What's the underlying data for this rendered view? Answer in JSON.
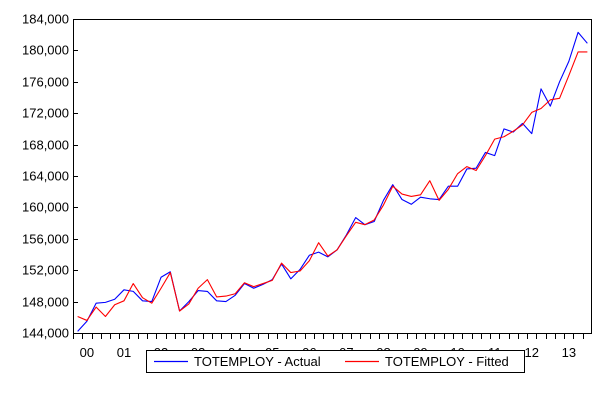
{
  "chart_data": {
    "type": "line",
    "title": "",
    "xlabel": "",
    "ylabel": "",
    "ylim": [
      144000,
      184000
    ],
    "yticks": [
      144000,
      148000,
      152000,
      156000,
      160000,
      164000,
      168000,
      172000,
      176000,
      180000,
      184000
    ],
    "ytick_labels": [
      "144,000",
      "148,000",
      "152,000",
      "156,000",
      "160,000",
      "164,000",
      "168,000",
      "172,000",
      "176,000",
      "180,000",
      "184,000"
    ],
    "x_range": [
      1999.75,
      2013.75
    ],
    "xticks": [
      2000.125,
      2001.125,
      2002.125,
      2003.125,
      2004.125,
      2005.125,
      2006.125,
      2007.125,
      2008.125,
      2009.125,
      2010.125,
      2011.125,
      2012.125,
      2013.125
    ],
    "xtick_labels": [
      "00",
      "01",
      "02",
      "03",
      "04",
      "05",
      "06",
      "07",
      "08",
      "09",
      "10",
      "11",
      "12",
      "13"
    ],
    "x_minor_ticks": [
      1999.75,
      2000.0,
      2000.25,
      2000.5,
      2000.75,
      2001.0,
      2001.25,
      2001.5,
      2001.75,
      2002.0,
      2002.25,
      2002.5,
      2002.75,
      2003.0,
      2003.25,
      2003.5,
      2003.75,
      2004.0,
      2004.25,
      2004.5,
      2004.75,
      2005.0,
      2005.25,
      2005.5,
      2005.75,
      2006.0,
      2006.25,
      2006.5,
      2006.75,
      2007.0,
      2007.25,
      2007.5,
      2007.75,
      2008.0,
      2008.25,
      2008.5,
      2008.75,
      2009.0,
      2009.25,
      2009.5,
      2009.75,
      2010.0,
      2010.25,
      2010.5,
      2010.75,
      2011.0,
      2011.25,
      2011.5,
      2011.75,
      2012.0,
      2012.25,
      2012.5,
      2012.75,
      2013.0,
      2013.25,
      2013.5,
      2013.75
    ],
    "grid": false,
    "legend_position": "bottom-center",
    "x": [
      1999.875,
      2000.125,
      2000.375,
      2000.625,
      2000.875,
      2001.125,
      2001.375,
      2001.625,
      2001.875,
      2002.125,
      2002.375,
      2002.625,
      2002.875,
      2003.125,
      2003.375,
      2003.625,
      2003.875,
      2004.125,
      2004.375,
      2004.625,
      2004.875,
      2005.125,
      2005.375,
      2005.625,
      2005.875,
      2006.125,
      2006.375,
      2006.625,
      2006.875,
      2007.125,
      2007.375,
      2007.625,
      2007.875,
      2008.125,
      2008.375,
      2008.625,
      2008.875,
      2009.125,
      2009.375,
      2009.625,
      2009.875,
      2010.125,
      2010.375,
      2010.625,
      2010.875,
      2011.125,
      2011.375,
      2011.625,
      2011.875,
      2012.125,
      2012.375,
      2012.625,
      2012.875,
      2013.125,
      2013.375,
      2013.625
    ],
    "series": [
      {
        "name": "TOTEMPLOY - Actual",
        "color": "#0000ff",
        "values": [
          144200,
          145500,
          147800,
          147900,
          148300,
          149500,
          149300,
          148100,
          148000,
          151100,
          151800,
          146800,
          148000,
          149400,
          149300,
          148100,
          148000,
          148800,
          150300,
          149700,
          150200,
          150800,
          152800,
          150900,
          152100,
          153900,
          154300,
          153700,
          154600,
          156500,
          158700,
          157800,
          158200,
          160900,
          162900,
          161000,
          160400,
          161300,
          161100,
          161000,
          162700,
          162700,
          164900,
          165000,
          167000,
          166600,
          170000,
          169600,
          170700,
          169400,
          175100,
          172900,
          176000,
          178600,
          182300,
          180900
        ]
      },
      {
        "name": "TOTEMPLOY - Fitted",
        "color": "#ff0000",
        "values": [
          146100,
          145600,
          147300,
          146100,
          147600,
          148100,
          150300,
          148500,
          147800,
          149700,
          151700,
          146800,
          147700,
          149700,
          150800,
          148600,
          148700,
          149000,
          150400,
          149900,
          150300,
          150700,
          152900,
          151700,
          151900,
          153200,
          155500,
          153800,
          154600,
          156400,
          158100,
          157800,
          158400,
          160300,
          162700,
          161700,
          161400,
          161600,
          163400,
          160900,
          162300,
          164300,
          165200,
          164700,
          166600,
          168700,
          169000,
          169700,
          170500,
          172100,
          172600,
          173700,
          173900,
          176800,
          179800,
          179800
        ]
      }
    ]
  }
}
